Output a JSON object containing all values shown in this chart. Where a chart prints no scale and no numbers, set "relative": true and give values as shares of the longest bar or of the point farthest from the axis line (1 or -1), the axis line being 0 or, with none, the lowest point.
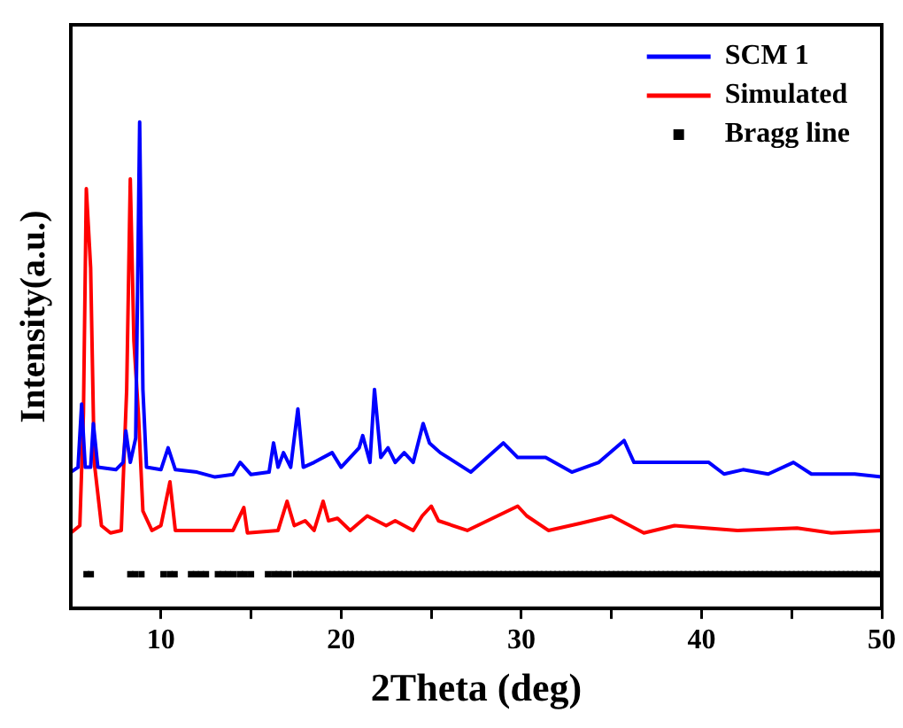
{
  "chart_data": {
    "type": "line",
    "relative": true,
    "xlabel": "2Theta (deg)",
    "ylabel": "Intensity(a.u.)",
    "xlim": [
      5,
      50
    ],
    "xticks": [
      10,
      {
        "value": 15,
        "label": null
      },
      20,
      {
        "value": 25,
        "label": null
      },
      30,
      {
        "value": 35,
        "label": null
      },
      40,
      {
        "value": 45,
        "label": null
      },
      50
    ],
    "legend": "top right",
    "grid": false,
    "series": [
      {
        "name": "SCM 1",
        "color": "#0000ff",
        "x": [
          5.0,
          5.4,
          5.6,
          5.8,
          6.1,
          6.25,
          6.5,
          7.5,
          7.9,
          8.05,
          8.3,
          8.6,
          8.82,
          9.0,
          9.2,
          10.0,
          10.4,
          10.8,
          12,
          13,
          14.0,
          14.4,
          15,
          16,
          16.25,
          16.5,
          16.8,
          17.2,
          17.6,
          17.9,
          18.5,
          19.5,
          20,
          21.0,
          21.2,
          21.6,
          21.85,
          22.2,
          22.6,
          23,
          23.5,
          24,
          24.55,
          24.9,
          25.5,
          26.35,
          27.2,
          29.0,
          29.8,
          31.35,
          32.8,
          34.3,
          35.7,
          36.25,
          38.5,
          40.4,
          41.25,
          42.3,
          43.7,
          45.1,
          46.1,
          48.5,
          50
        ],
        "values": [
          0.28,
          0.29,
          0.42,
          0.29,
          0.29,
          0.38,
          0.29,
          0.285,
          0.3,
          0.365,
          0.3,
          0.35,
          1.0,
          0.45,
          0.29,
          0.285,
          0.33,
          0.285,
          0.28,
          0.27,
          0.275,
          0.3,
          0.275,
          0.28,
          0.34,
          0.29,
          0.32,
          0.29,
          0.41,
          0.29,
          0.3,
          0.32,
          0.29,
          0.33,
          0.355,
          0.3,
          0.45,
          0.31,
          0.33,
          0.3,
          0.32,
          0.3,
          0.38,
          0.34,
          0.32,
          0.3,
          0.28,
          0.34,
          0.31,
          0.31,
          0.28,
          0.3,
          0.345,
          0.3,
          0.3,
          0.3,
          0.276,
          0.285,
          0.276,
          0.3,
          0.276,
          0.276,
          0.27
        ]
      },
      {
        "name": "Simulated",
        "color": "#ff0000",
        "x": [
          5.0,
          5.5,
          5.7,
          5.86,
          6.1,
          6.3,
          6.7,
          7.2,
          7.8,
          8.1,
          8.3,
          8.5,
          8.75,
          9.0,
          9.5,
          10.0,
          10.5,
          10.8,
          12,
          14.0,
          14.6,
          14.8,
          16.5,
          17.0,
          17.4,
          18.0,
          18.5,
          19.0,
          19.3,
          19.8,
          20.5,
          21.45,
          22.5,
          23,
          24,
          24.5,
          25.0,
          25.4,
          27,
          29.8,
          30.3,
          31.5,
          33.3,
          35.0,
          36.8,
          38.5,
          42,
          45.3,
          47.2,
          50
        ],
        "values": [
          0.155,
          0.17,
          0.4,
          0.863,
          0.7,
          0.3,
          0.17,
          0.155,
          0.16,
          0.45,
          0.883,
          0.55,
          0.4,
          0.2,
          0.16,
          0.17,
          0.26,
          0.16,
          0.16,
          0.16,
          0.207,
          0.155,
          0.16,
          0.22,
          0.17,
          0.18,
          0.16,
          0.22,
          0.18,
          0.185,
          0.16,
          0.19,
          0.17,
          0.18,
          0.16,
          0.19,
          0.21,
          0.18,
          0.16,
          0.21,
          0.19,
          0.16,
          0.175,
          0.19,
          0.155,
          0.17,
          0.16,
          0.165,
          0.155,
          0.16
        ]
      },
      {
        "name": "Bragg line",
        "type": "scatter",
        "color": "#000000",
        "marker": "square",
        "x": [
          5.87,
          6.11,
          8.3,
          8.57,
          8.92,
          10.14,
          10.49,
          10.76,
          11.67,
          11.94,
          12.22,
          12.5,
          13.16,
          13.44,
          13.72,
          14.03,
          14.38,
          14.65,
          15.0,
          15.94,
          16.28,
          16.53,
          16.8,
          17.08,
          17.5,
          17.75,
          18.0,
          18.25,
          18.5,
          18.75,
          19.0,
          19.25,
          19.5,
          19.75,
          20.0,
          20.25,
          20.5,
          20.75,
          21.0,
          21.25,
          21.5,
          21.75,
          22.0,
          22.25,
          22.5,
          22.75,
          23.0,
          23.25,
          23.5,
          23.75,
          24.0,
          24.25,
          24.5,
          24.75,
          25.0,
          25.25,
          25.5,
          25.75,
          26.0,
          26.25,
          26.5,
          26.75,
          27.0,
          27.25,
          27.5,
          27.75,
          28.0,
          28.25,
          28.5,
          28.75,
          29.0,
          29.25,
          29.5,
          29.75,
          30.0,
          30.25,
          30.5,
          30.75,
          31.0,
          31.25,
          31.5,
          31.75,
          32.0,
          32.25,
          32.5,
          32.75,
          33.0,
          33.25,
          33.5,
          33.75,
          34.0,
          34.25,
          34.5,
          34.75,
          35.0,
          35.25,
          35.5,
          35.75,
          36.0,
          36.25,
          36.5,
          36.75,
          37.0,
          37.25,
          37.5,
          37.75,
          38.0,
          38.25,
          38.5,
          38.75,
          39.0,
          39.25,
          39.5,
          39.75,
          40.0,
          40.25,
          40.5,
          40.75,
          41.0,
          41.25,
          41.5,
          41.75,
          42.0,
          42.25,
          42.5,
          42.75,
          43.0,
          43.25,
          43.5,
          43.75,
          44.0,
          44.25,
          44.5,
          44.75,
          45.0,
          45.25,
          45.5,
          45.75,
          46.0,
          46.25,
          46.5,
          46.75,
          47.0,
          47.25,
          47.5,
          47.75,
          48.0,
          48.25,
          48.5,
          48.75,
          49.0,
          49.25,
          49.5,
          49.75
        ],
        "values": [
          0.07,
          0.07,
          0.07,
          0.07,
          0.07,
          0.07,
          0.07,
          0.07,
          0.07,
          0.07,
          0.07,
          0.07,
          0.07,
          0.07,
          0.07,
          0.07,
          0.07,
          0.07,
          0.07,
          0.07,
          0.07,
          0.07,
          0.07,
          0.07,
          0.07,
          0.07,
          0.07,
          0.07,
          0.07,
          0.07,
          0.07,
          0.07,
          0.07,
          0.07,
          0.07,
          0.07,
          0.07,
          0.07,
          0.07,
          0.07,
          0.07,
          0.07,
          0.07,
          0.07,
          0.07,
          0.07,
          0.07,
          0.07,
          0.07,
          0.07,
          0.07,
          0.07,
          0.07,
          0.07,
          0.07,
          0.07,
          0.07,
          0.07,
          0.07,
          0.07,
          0.07,
          0.07,
          0.07,
          0.07,
          0.07,
          0.07,
          0.07,
          0.07,
          0.07,
          0.07,
          0.07,
          0.07,
          0.07,
          0.07,
          0.07,
          0.07,
          0.07,
          0.07,
          0.07,
          0.07,
          0.07,
          0.07,
          0.07,
          0.07,
          0.07,
          0.07,
          0.07,
          0.07,
          0.07,
          0.07,
          0.07,
          0.07,
          0.07,
          0.07,
          0.07,
          0.07,
          0.07,
          0.07,
          0.07,
          0.07,
          0.07,
          0.07,
          0.07,
          0.07,
          0.07,
          0.07,
          0.07,
          0.07,
          0.07,
          0.07,
          0.07,
          0.07,
          0.07,
          0.07,
          0.07,
          0.07,
          0.07,
          0.07,
          0.07,
          0.07,
          0.07,
          0.07,
          0.07,
          0.07,
          0.07,
          0.07,
          0.07,
          0.07,
          0.07,
          0.07,
          0.07,
          0.07,
          0.07,
          0.07,
          0.07,
          0.07,
          0.07,
          0.07,
          0.07,
          0.07,
          0.07,
          0.07,
          0.07,
          0.07,
          0.07,
          0.07,
          0.07,
          0.07,
          0.07,
          0.07,
          0.07,
          0.07,
          0.07,
          0.07
        ]
      }
    ]
  }
}
